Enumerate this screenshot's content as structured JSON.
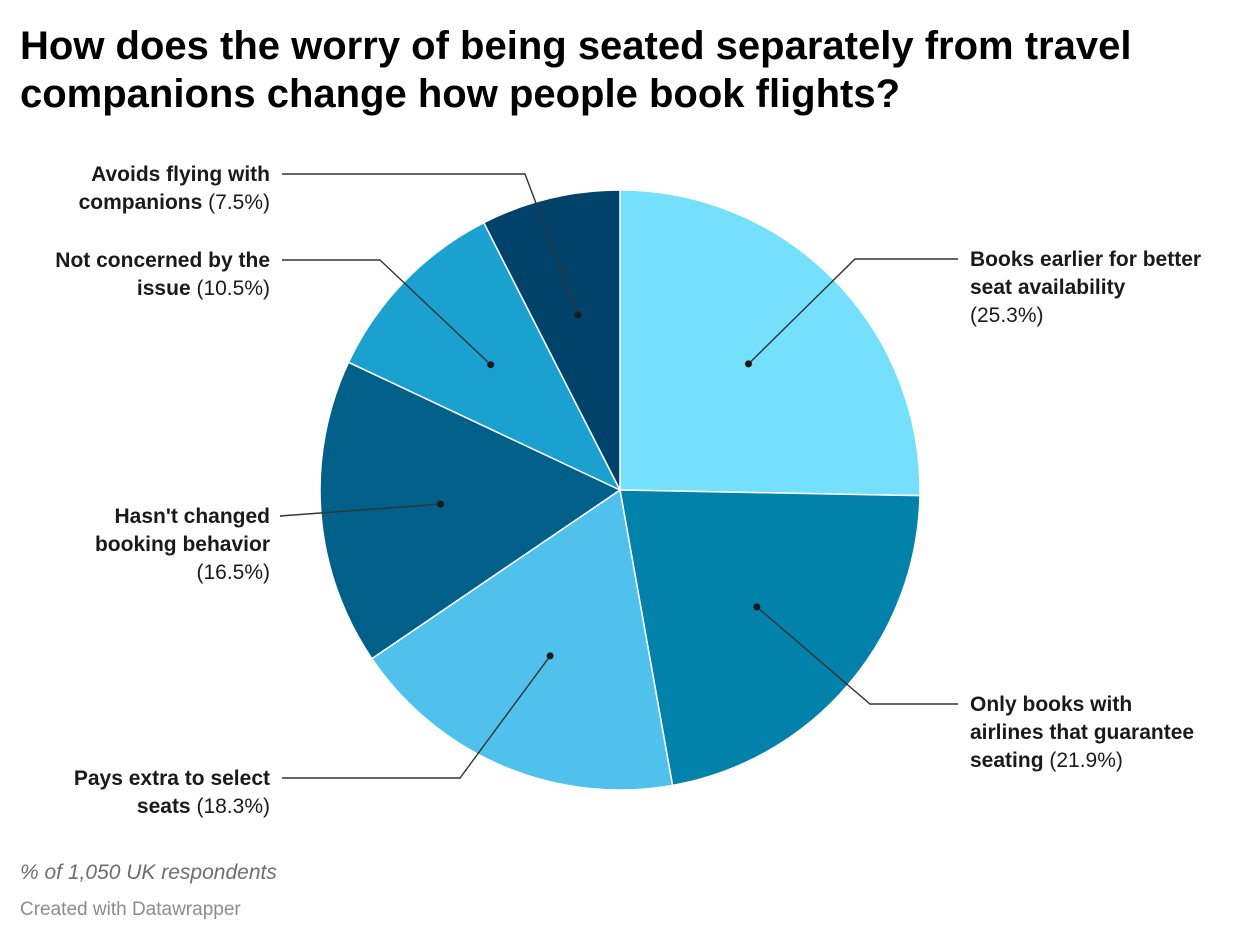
{
  "title": "How does the worry of being seated separately from travel companions change how people book flights?",
  "note": "% of 1,050 UK respondents",
  "credit": "Created with Datawrapper",
  "chart_data": {
    "type": "pie",
    "start_angle_deg": 0,
    "direction": "clockwise",
    "slices": [
      {
        "key": "books-earlier",
        "label_lines": [
          "Books earlier for better",
          "seat availability"
        ],
        "value": 25.3,
        "value_label": "(25.3%)",
        "value_on_own_line": true,
        "color": "#74e0fc"
      },
      {
        "key": "only-guaranteed-airlines",
        "label_lines": [
          "Only books with",
          "airlines that guarantee",
          "seating"
        ],
        "value": 21.9,
        "value_label": "(21.9%)",
        "value_on_own_line": false,
        "color": "#0281aa"
      },
      {
        "key": "pays-extra",
        "label_lines": [
          "Pays extra to select",
          "seats"
        ],
        "value": 18.3,
        "value_label": "(18.3%)",
        "value_on_own_line": false,
        "color": "#4fc1ec"
      },
      {
        "key": "not-changed",
        "label_lines": [
          "Hasn't changed",
          "booking behavior"
        ],
        "value": 16.5,
        "value_label": "(16.5%)",
        "value_on_own_line": true,
        "color": "#00608a"
      },
      {
        "key": "not-concerned",
        "label_lines": [
          "Not concerned by the",
          "issue"
        ],
        "value": 10.5,
        "value_label": "(10.5%)",
        "value_on_own_line": false,
        "color": "#1ba1cf"
      },
      {
        "key": "avoids-flying",
        "label_lines": [
          "Avoids flying with",
          "companions"
        ],
        "value": 7.5,
        "value_label": "(7.5%)",
        "value_on_own_line": false,
        "color": "#01426a"
      }
    ]
  }
}
